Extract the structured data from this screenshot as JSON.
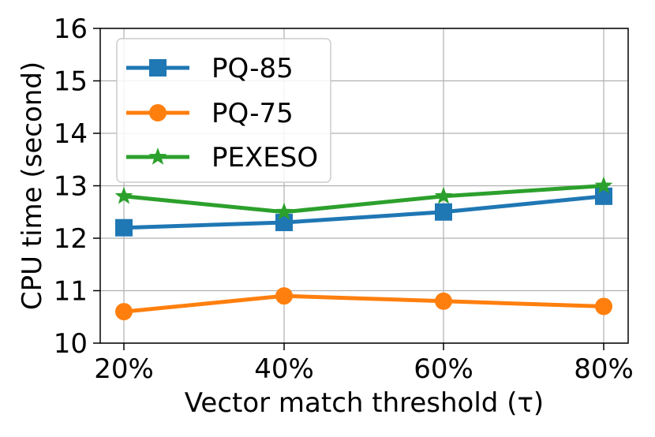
{
  "chart_data": {
    "type": "line",
    "title": "",
    "xlabel": "Vector match threshold (τ)",
    "ylabel": "CPU time (second)",
    "categories": [
      "20%",
      "40%",
      "60%",
      "80%"
    ],
    "ylim": [
      10,
      16
    ],
    "yticks": [
      "10",
      "11",
      "12",
      "13",
      "14",
      "15",
      "16"
    ],
    "grid": true,
    "legend_position": "top-left",
    "series": [
      {
        "name": "PQ-85",
        "color": "#1f77b4",
        "marker": "square",
        "values": [
          12.2,
          12.3,
          12.5,
          12.8
        ]
      },
      {
        "name": "PQ-75",
        "color": "#ff7f0e",
        "marker": "circle",
        "values": [
          10.6,
          10.9,
          10.8,
          10.7
        ]
      },
      {
        "name": "PEXESO",
        "color": "#2ca02c",
        "marker": "star",
        "values": [
          12.8,
          12.5,
          12.8,
          13.0
        ]
      }
    ]
  }
}
